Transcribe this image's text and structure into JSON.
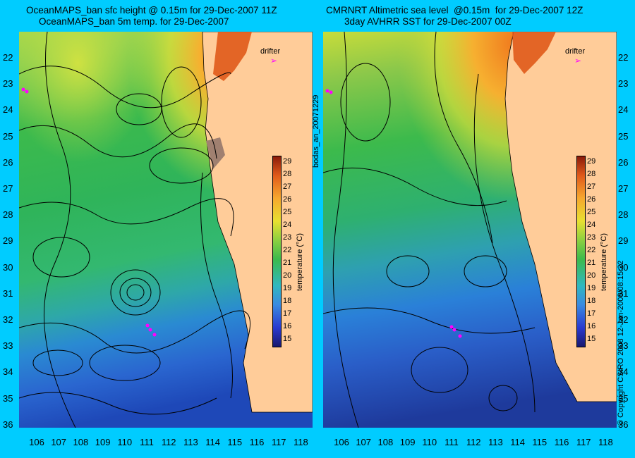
{
  "titles": {
    "left_line1": "OceanMAPS_ban sfc height @ 0.15m for 29-Dec-2007 11Z",
    "left_line2": "OceanMAPS_ban 5m temp. for 29-Dec-2007",
    "right_line1": "CMRNRT Altimetric sea level  @0.15m  for 29-Dec-2007 12Z",
    "right_line2": "3day AVHRR SST for 29-Dec-2007 00Z"
  },
  "axes": {
    "lat_labels": [
      "22",
      "23",
      "24",
      "25",
      "26",
      "27",
      "28",
      "29",
      "30",
      "31",
      "32",
      "33",
      "34",
      "35",
      "36"
    ],
    "lon_labels": [
      "106",
      "107",
      "108",
      "109",
      "110",
      "111",
      "112",
      "113",
      "114",
      "115",
      "116",
      "117",
      "118"
    ]
  },
  "legend": {
    "drifter_label": "drifter",
    "colorbar_title": "temperature (°C)",
    "colorbar_ticks": [
      "15",
      "16",
      "17",
      "18",
      "19",
      "20",
      "21",
      "22",
      "23",
      "24",
      "25",
      "26",
      "27",
      "28",
      "29"
    ]
  },
  "side_text": {
    "bodas": "bodas_an_20071229",
    "copyright": "© Copyright CSIRO 2008   12-Jan-2008/08:15:22"
  },
  "colors": {
    "background": "#00ccff",
    "land": "#ffcc99",
    "coast": "#a08070",
    "drifter": "#ff00ff",
    "contour": "#000000"
  }
}
